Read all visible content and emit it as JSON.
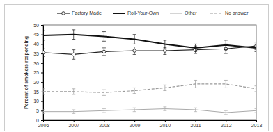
{
  "chart_data": {
    "type": "line",
    "y_label": "Percent of smokers responding",
    "x": [
      2006,
      2007,
      2008,
      2009,
      2010,
      2011,
      2012,
      2013
    ],
    "xlim": [
      2006,
      2013
    ],
    "xticks": [
      2006,
      2007,
      2008,
      2009,
      2010,
      2011,
      2012,
      2013
    ],
    "ylim": [
      0,
      50
    ],
    "yticks": [
      0,
      5,
      10,
      15,
      20,
      25,
      30,
      35,
      40,
      45,
      50
    ],
    "grid": false,
    "legend": "top",
    "series": [
      {
        "name": "Factory Made",
        "color": "#222222",
        "marker": "circle",
        "line_style": "solid",
        "values": [
          35.5,
          34.5,
          36,
          36.5,
          36.5,
          37,
          37.5,
          39
        ],
        "errors": [
          2,
          2.5,
          2,
          2,
          2,
          2,
          2.5,
          2
        ]
      },
      {
        "name": "Roll-Your-Own",
        "color": "#111111",
        "marker": "none",
        "line_style": "solid",
        "values": [
          44.5,
          45,
          44,
          42.5,
          40,
          38,
          39.5,
          38
        ],
        "errors": [
          2.5,
          2.5,
          2.5,
          2.5,
          2,
          2,
          2.5,
          2
        ]
      },
      {
        "name": "Other",
        "color": "#aaaaaa",
        "marker": "none",
        "line_style": "solid",
        "values": [
          4.5,
          4.5,
          5,
          5.5,
          6,
          5.5,
          4,
          5
        ],
        "errors": [
          1,
          1,
          1,
          1,
          1,
          1,
          1,
          1
        ]
      },
      {
        "name": "No answer",
        "color": "#999999",
        "marker": "none",
        "line_style": "dashed",
        "values": [
          15,
          15,
          14.5,
          15.5,
          17,
          19,
          19,
          16.5
        ],
        "errors": [
          1.5,
          1.5,
          1.5,
          1.5,
          1.5,
          2,
          2,
          1.5
        ]
      }
    ]
  }
}
